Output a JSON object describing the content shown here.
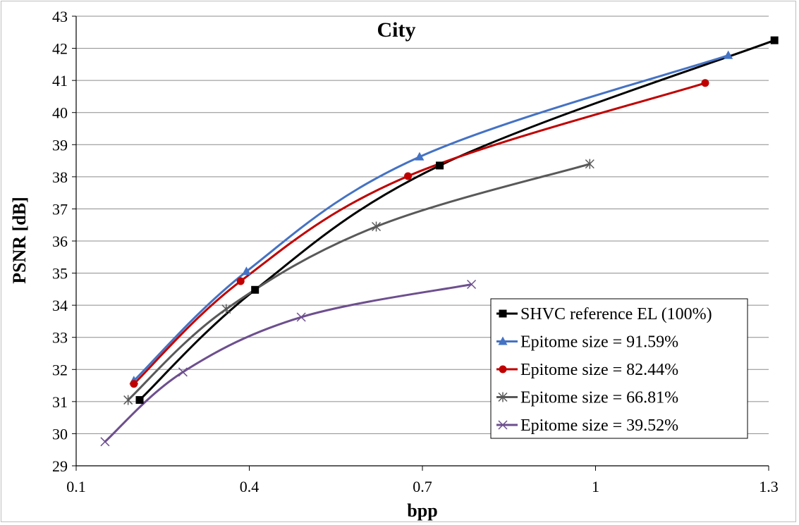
{
  "chart_data": {
    "type": "line",
    "title": "City",
    "xlabel": "bpp",
    "ylabel": "PSNR [dB]",
    "xlim": [
      0.1,
      1.3
    ],
    "ylim": [
      29,
      43
    ],
    "x_ticks": [
      "0.1",
      "0.4",
      "0.7",
      "1",
      "1.3"
    ],
    "x_tick_values": [
      0.1,
      0.4,
      0.7,
      1.0,
      1.3
    ],
    "y_ticks": [
      "29",
      "30",
      "31",
      "32",
      "33",
      "34",
      "35",
      "36",
      "37",
      "38",
      "39",
      "40",
      "41",
      "42",
      "43"
    ],
    "y_tick_values": [
      29,
      30,
      31,
      32,
      33,
      34,
      35,
      36,
      37,
      38,
      39,
      40,
      41,
      42,
      43
    ],
    "grid": "horizontal",
    "legend_position": "bottom-right",
    "series": [
      {
        "name": "SHVC reference EL (100%)",
        "color": "#000000",
        "marker": "square",
        "x": [
          0.21,
          0.41,
          0.73,
          1.31
        ],
        "y": [
          31.05,
          34.48,
          38.35,
          42.25
        ]
      },
      {
        "name": "Epitome size = 91.59%",
        "color": "#4472c4",
        "marker": "triangle",
        "x": [
          0.2,
          0.395,
          0.695,
          1.23
        ],
        "y": [
          31.65,
          35.05,
          38.62,
          41.78
        ]
      },
      {
        "name": "Epitome size = 82.44%",
        "color": "#c00000",
        "marker": "circle",
        "x": [
          0.2,
          0.385,
          0.675,
          1.19
        ],
        "y": [
          31.55,
          34.75,
          38.02,
          40.92
        ]
      },
      {
        "name": "Epitome size = 66.81%",
        "color": "#595959",
        "marker": "star",
        "x": [
          0.19,
          0.36,
          0.62,
          0.99
        ],
        "y": [
          31.05,
          33.88,
          36.45,
          38.4
        ]
      },
      {
        "name": "Epitome size = 39.52%",
        "color": "#6d4f8e",
        "marker": "x",
        "x": [
          0.15,
          0.285,
          0.49,
          0.785
        ],
        "y": [
          29.75,
          31.92,
          33.63,
          34.65
        ]
      }
    ]
  }
}
